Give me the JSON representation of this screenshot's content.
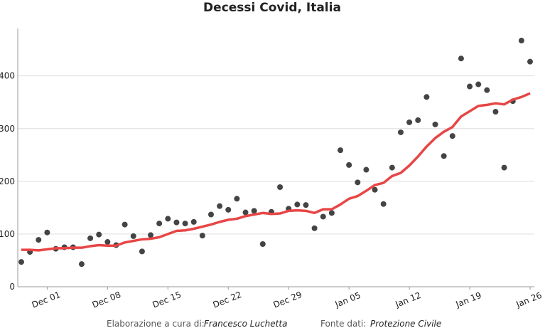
{
  "chart_data": {
    "type": "line",
    "title": "Decessi Covid, Italia",
    "x": [
      "Nov 28",
      "Nov 29",
      "Nov 30",
      "Dec 01",
      "Dec 02",
      "Dec 03",
      "Dec 04",
      "Dec 05",
      "Dec 06",
      "Dec 07",
      "Dec 08",
      "Dec 09",
      "Dec 10",
      "Dec 11",
      "Dec 12",
      "Dec 13",
      "Dec 14",
      "Dec 15",
      "Dec 16",
      "Dec 17",
      "Dec 18",
      "Dec 19",
      "Dec 20",
      "Dec 21",
      "Dec 22",
      "Dec 23",
      "Dec 24",
      "Dec 25",
      "Dec 26",
      "Dec 27",
      "Dec 28",
      "Dec 29",
      "Dec 30",
      "Dec 31",
      "Jan 01",
      "Jan 02",
      "Jan 03",
      "Jan 04",
      "Jan 05",
      "Jan 06",
      "Jan 07",
      "Jan 08",
      "Jan 09",
      "Jan 10",
      "Jan 11",
      "Jan 12",
      "Jan 13",
      "Jan 14",
      "Jan 15",
      "Jan 16",
      "Jan 17",
      "Jan 18",
      "Jan 19",
      "Jan 20",
      "Jan 21",
      "Jan 22",
      "Jan 23",
      "Jan 24",
      "Jan 25",
      "Jan 26"
    ],
    "series": [
      {
        "style": "markers",
        "color": "#444444",
        "values": [
          47,
          66,
          89,
          103,
          72,
          75,
          75,
          43,
          92,
          99,
          85,
          79,
          118,
          96,
          67,
          98,
          120,
          129,
          122,
          120,
          123,
          97,
          137,
          153,
          146,
          167,
          141,
          144,
          81,
          142,
          189,
          148,
          156,
          155,
          111,
          133,
          140,
          259,
          231,
          198,
          222,
          184,
          157,
          226,
          293,
          312,
          316,
          360,
          308,
          248,
          286,
          433,
          380,
          384,
          373,
          332,
          226,
          352,
          467,
          427
        ]
      },
      {
        "style": "line",
        "color": "#e84545",
        "values": [
          70,
          70,
          69,
          71,
          73,
          73,
          74,
          74,
          77,
          79,
          78,
          78,
          84,
          87,
          90,
          91,
          94,
          100,
          106,
          107,
          110,
          114,
          118,
          123,
          127,
          129,
          134,
          137,
          140,
          138,
          139,
          144,
          145,
          144,
          140,
          147,
          147,
          156,
          167,
          172,
          182,
          193,
          197,
          210,
          216,
          230,
          247,
          266,
          282,
          294,
          303,
          323,
          333,
          343,
          345,
          348,
          346,
          355,
          360,
          367
        ]
      }
    ],
    "ylim": [
      0,
      490
    ],
    "yticks": [
      0,
      100,
      200,
      300,
      400
    ],
    "xticks": [
      "Dec 01",
      "Dec 08",
      "Dec 15",
      "Dec 22",
      "Dec 29",
      "Jan 05",
      "Jan 12",
      "Jan 19",
      "Jan 26"
    ],
    "grid": true,
    "footer": {
      "credit_label": "Elaborazione a cura di:",
      "credit_name": "Francesco Luchetta",
      "source_label": "Fonte dati:",
      "source_name": "Protezione Civile"
    }
  }
}
